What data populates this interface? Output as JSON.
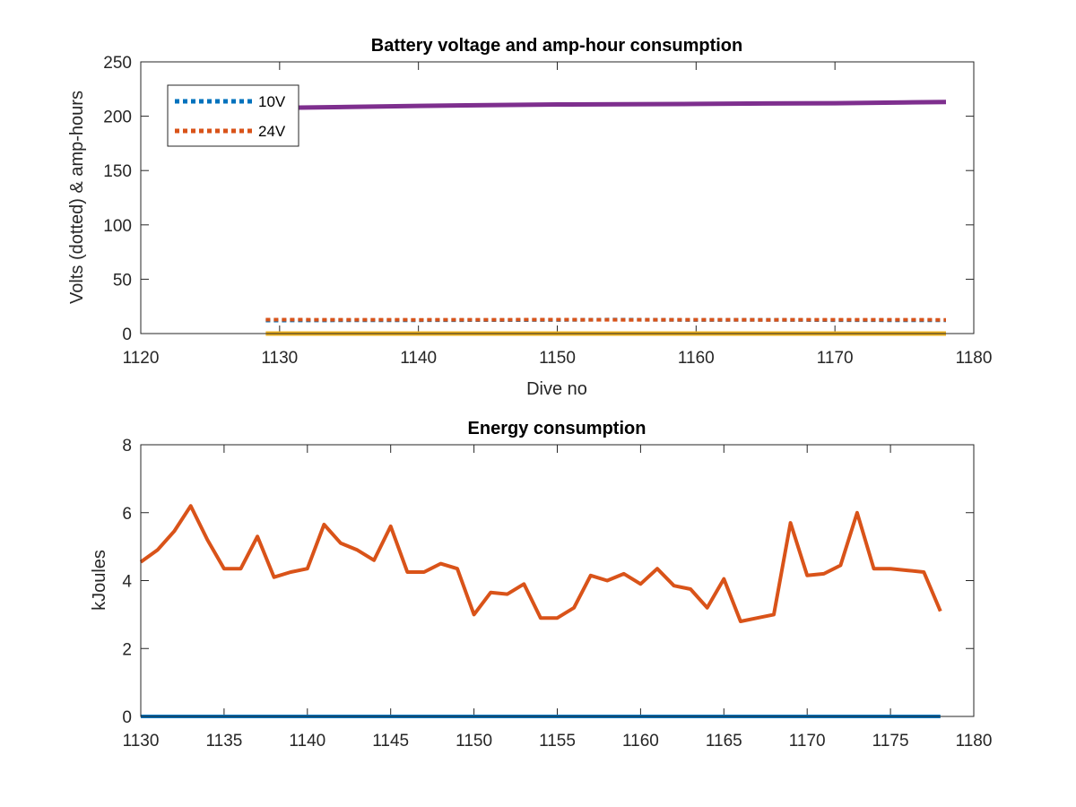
{
  "chart_data": [
    {
      "type": "line",
      "title": "Battery voltage and amp-hour consumption",
      "xlabel": "Dive no",
      "ylabel": "Volts (dotted) & amp-hours",
      "xlim": [
        1120,
        1180
      ],
      "ylim": [
        0,
        250
      ],
      "xticks": [
        1120,
        1130,
        1140,
        1150,
        1160,
        1170,
        1180
      ],
      "yticks": [
        0,
        50,
        100,
        150,
        200,
        250
      ],
      "grid": false,
      "legend_position": "top-left",
      "series": [
        {
          "name": "10V",
          "style": "dotted",
          "color": "#0072BD",
          "in_legend": true,
          "x": [
            1129,
            1134,
            1140,
            1145,
            1150,
            1154,
            1160,
            1165,
            1170,
            1178
          ],
          "values": [
            12.0,
            12.1,
            12.2,
            12.4,
            12.5,
            12.9,
            12.5,
            12.6,
            12.3,
            12.1
          ]
        },
        {
          "name": "24V",
          "style": "dotted",
          "color": "#D95319",
          "in_legend": true,
          "x": [
            1129,
            1134,
            1140,
            1145,
            1150,
            1155,
            1160,
            1165,
            1170,
            1178
          ],
          "values": [
            12.8,
            12.7,
            12.6,
            12.7,
            12.8,
            12.6,
            12.7,
            12.6,
            12.7,
            12.6
          ]
        },
        {
          "style": "solid",
          "color": "#7E2F8E",
          "in_legend": false,
          "x": [
            1129,
            1135,
            1140,
            1145,
            1150,
            1155,
            1160,
            1165,
            1170,
            1175,
            1178
          ],
          "values": [
            207.5,
            208.5,
            209.5,
            210.2,
            210.8,
            211.0,
            211.3,
            211.7,
            212.0,
            212.7,
            213.0
          ]
        },
        {
          "style": "solid",
          "color": "#EDB120",
          "in_legend": false,
          "x": [
            1129,
            1178
          ],
          "values": [
            0,
            0
          ]
        }
      ]
    },
    {
      "type": "line",
      "title": "Energy consumption",
      "xlabel": "",
      "ylabel": "kJoules",
      "xlim": [
        1130,
        1180
      ],
      "ylim": [
        0,
        8
      ],
      "xticks": [
        1130,
        1135,
        1140,
        1145,
        1150,
        1155,
        1160,
        1165,
        1170,
        1175,
        1180
      ],
      "yticks": [
        0,
        2,
        4,
        6,
        8
      ],
      "grid": false,
      "series": [
        {
          "style": "solid",
          "color": "#D95319",
          "x": [
            1130,
            1131,
            1132,
            1133,
            1134,
            1135,
            1136,
            1137,
            1138,
            1139,
            1140,
            1141,
            1142,
            1143,
            1144,
            1145,
            1146,
            1147,
            1148,
            1149,
            1150,
            1151,
            1152,
            1153,
            1154,
            1155,
            1156,
            1157,
            1158,
            1159,
            1160,
            1161,
            1162,
            1163,
            1164,
            1165,
            1166,
            1167,
            1168,
            1169,
            1170,
            1171,
            1172,
            1173,
            1174,
            1175,
            1176,
            1177,
            1178
          ],
          "values": [
            4.55,
            4.9,
            5.45,
            6.2,
            5.2,
            4.35,
            4.35,
            5.3,
            4.1,
            4.25,
            4.35,
            5.65,
            5.1,
            4.9,
            4.6,
            5.6,
            4.25,
            4.25,
            4.5,
            4.35,
            3.0,
            3.65,
            3.6,
            3.9,
            2.9,
            2.9,
            3.2,
            4.15,
            4.0,
            4.2,
            3.9,
            4.35,
            3.85,
            3.75,
            3.2,
            4.05,
            2.8,
            2.9,
            3.0,
            5.7,
            4.15,
            4.2,
            4.45,
            6.0,
            4.35,
            4.35,
            4.3,
            4.25,
            3.1
          ]
        },
        {
          "style": "solid",
          "color": "#0072BD",
          "x": [
            1130,
            1178
          ],
          "values": [
            0,
            0
          ]
        }
      ]
    }
  ]
}
